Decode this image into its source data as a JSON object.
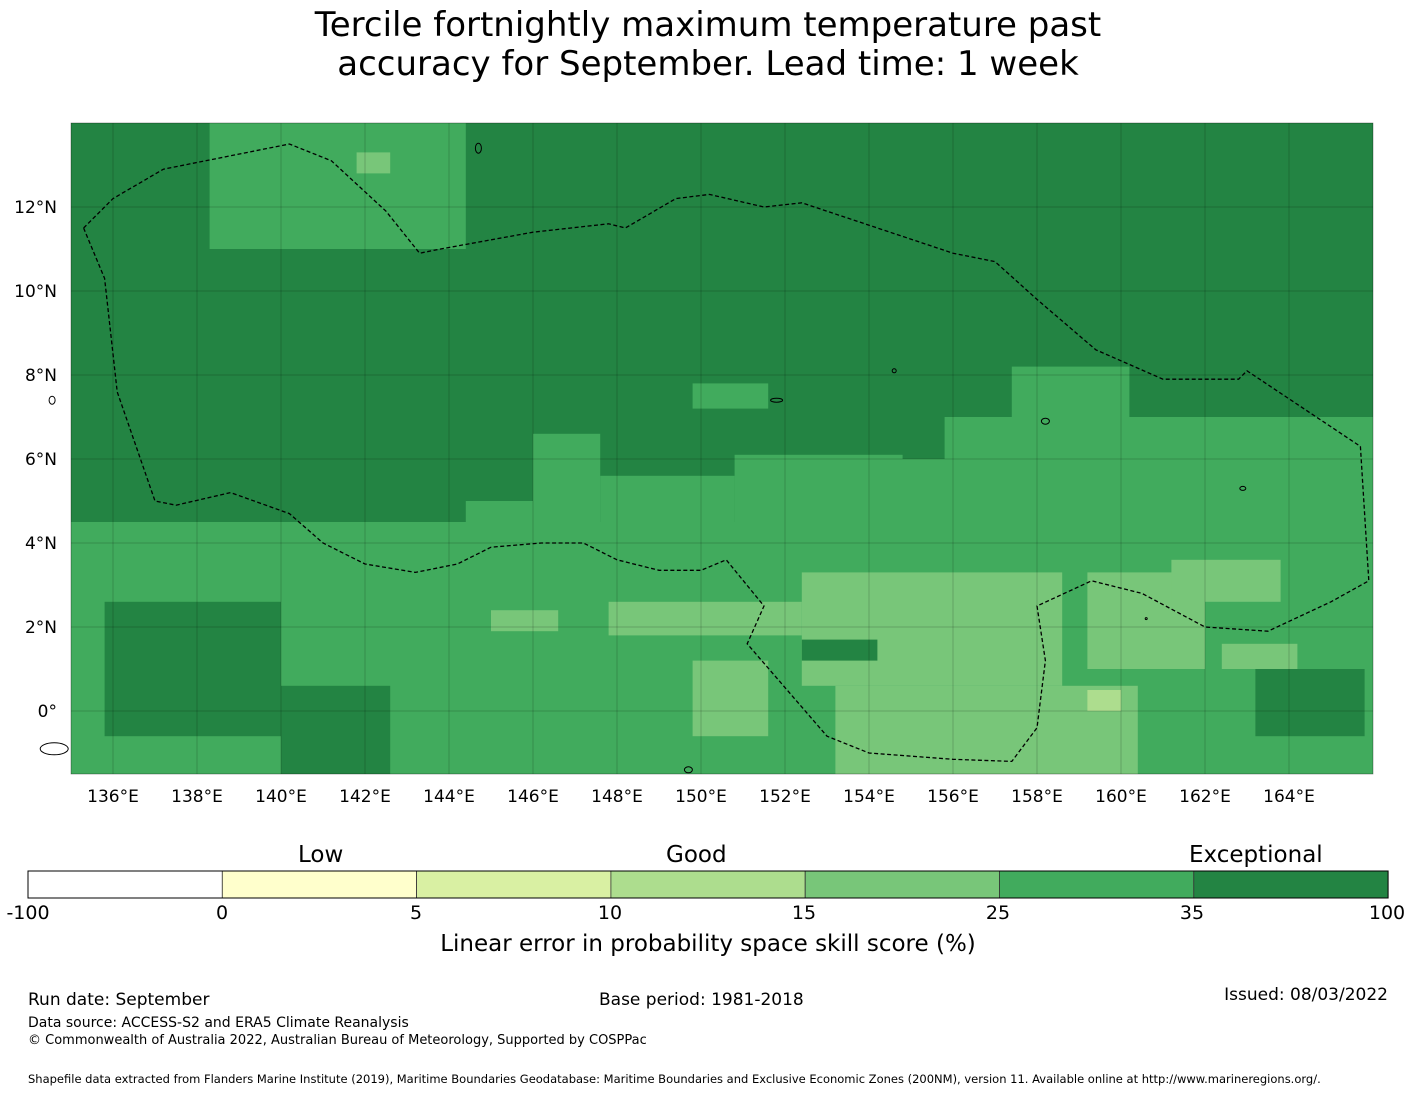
{
  "title_line1": "Tercile fortnightly maximum temperature past",
  "title_line2": "accuracy for September. Lead time: 1 week",
  "map": {
    "lon_range": [
      135,
      166
    ],
    "lat_range": [
      -1.5,
      14
    ],
    "x_ticks": [
      "136°E",
      "138°E",
      "140°E",
      "142°E",
      "144°E",
      "146°E",
      "148°E",
      "150°E",
      "152°E",
      "154°E",
      "156°E",
      "158°E",
      "160°E",
      "162°E",
      "164°E"
    ],
    "y_ticks": [
      "12°N",
      "10°N",
      "8°N",
      "6°N",
      "4°N",
      "2°N",
      "0°"
    ],
    "boundary_line": "dashed EEZ boundary",
    "background_category": 35,
    "regions": [
      {
        "category": 25,
        "lon": [
          135,
          166
        ],
        "lat": [
          -1.5,
          4.5
        ]
      },
      {
        "category": 25,
        "lon": [
          144.4,
          146
        ],
        "lat": [
          4.5,
          5
        ]
      },
      {
        "category": 25,
        "lon": [
          146,
          147.6
        ],
        "lat": [
          4.5,
          6.6
        ]
      },
      {
        "category": 25,
        "lon": [
          147.6,
          150.8
        ],
        "lat": [
          4.5,
          5.6
        ]
      },
      {
        "category": 25,
        "lon": [
          150.8,
          166
        ],
        "lat": [
          4.5,
          6
        ]
      },
      {
        "category": 25,
        "lon": [
          150.8,
          154.8
        ],
        "lat": [
          6,
          6.1
        ]
      },
      {
        "category": 25,
        "lon": [
          155.8,
          166
        ],
        "lat": [
          6,
          7
        ]
      },
      {
        "category": 25,
        "lon": [
          157.4,
          160.2
        ],
        "lat": [
          7,
          8.2
        ]
      },
      {
        "category": 25,
        "lon": [
          138.3,
          144.4
        ],
        "lat": [
          11,
          14
        ]
      },
      {
        "category": 25,
        "lon": [
          149.8,
          151.6
        ],
        "lat": [
          7.2,
          7.8
        ]
      },
      {
        "category": 15,
        "lon": [
          152.4,
          158.6
        ],
        "lat": [
          0.6,
          3.3
        ]
      },
      {
        "category": 15,
        "lon": [
          153.2,
          160.4
        ],
        "lat": [
          -1.5,
          0.6
        ]
      },
      {
        "category": 15,
        "lon": [
          147.8,
          152.4
        ],
        "lat": [
          1.8,
          2.6
        ]
      },
      {
        "category": 15,
        "lon": [
          149.8,
          151.6
        ],
        "lat": [
          -0.6,
          1.2
        ]
      },
      {
        "category": 15,
        "lon": [
          159.2,
          162
        ],
        "lat": [
          1,
          3.3
        ]
      },
      {
        "category": 15,
        "lon": [
          161.2,
          163.8
        ],
        "lat": [
          2.6,
          3.6
        ]
      },
      {
        "category": 15,
        "lon": [
          162.4,
          164.2
        ],
        "lat": [
          1,
          1.6
        ]
      },
      {
        "category": 15,
        "lon": [
          145,
          146.6
        ],
        "lat": [
          1.9,
          2.4
        ]
      },
      {
        "category": 15,
        "lon": [
          141.8,
          142.6
        ],
        "lat": [
          12.8,
          13.3
        ]
      },
      {
        "category": 10,
        "lon": [
          159.2,
          160
        ],
        "lat": [
          0,
          0.5
        ]
      },
      {
        "category": 35,
        "lon": [
          135.8,
          140
        ],
        "lat": [
          -0.6,
          2.6
        ]
      },
      {
        "category": 35,
        "lon": [
          140,
          142.6
        ],
        "lat": [
          -1.5,
          0.6
        ]
      },
      {
        "category": 35,
        "lon": [
          163.2,
          165.8
        ],
        "lat": [
          -0.6,
          1
        ]
      },
      {
        "category": 35,
        "lon": [
          152.4,
          154.2
        ],
        "lat": [
          1.2,
          1.7
        ]
      }
    ]
  },
  "colorbar": {
    "group_labels": [
      "Low",
      "Good",
      "Exceptional"
    ],
    "tick_labels": [
      "-100",
      "0",
      "5",
      "10",
      "15",
      "25",
      "35",
      "100"
    ],
    "bins": [
      {
        "from": -100,
        "to": 0,
        "color": "#ffffff"
      },
      {
        "from": 0,
        "to": 5,
        "color": "#ffffcc"
      },
      {
        "from": 5,
        "to": 10,
        "color": "#d9f0a3"
      },
      {
        "from": 10,
        "to": 15,
        "color": "#addd8e"
      },
      {
        "from": 15,
        "to": 25,
        "color": "#78c679"
      },
      {
        "from": 25,
        "to": 35,
        "color": "#41ab5d"
      },
      {
        "from": 35,
        "to": 100,
        "color": "#238443"
      }
    ],
    "axis_label": "Linear error in probability space skill score (%)"
  },
  "footer": {
    "run_date": "Run date: September",
    "base_period": "Base period: 1981-2018",
    "issued": "Issued: 08/03/2022",
    "data_source": "Data source: ACCESS-S2 and ERA5 Climate Reanalysis",
    "copyright": "© Commonwealth of Australia 2022, Australian Bureau of Meteorology, Supported by COSPPac",
    "shapefile": "Shapefile data extracted from Flanders Marine Institute (2019), Maritime Boundaries Geodatabase: Maritime Boundaries and Exclusive Economic Zones (200NM), version 11. Available online at http://www.marineregions.org/."
  }
}
